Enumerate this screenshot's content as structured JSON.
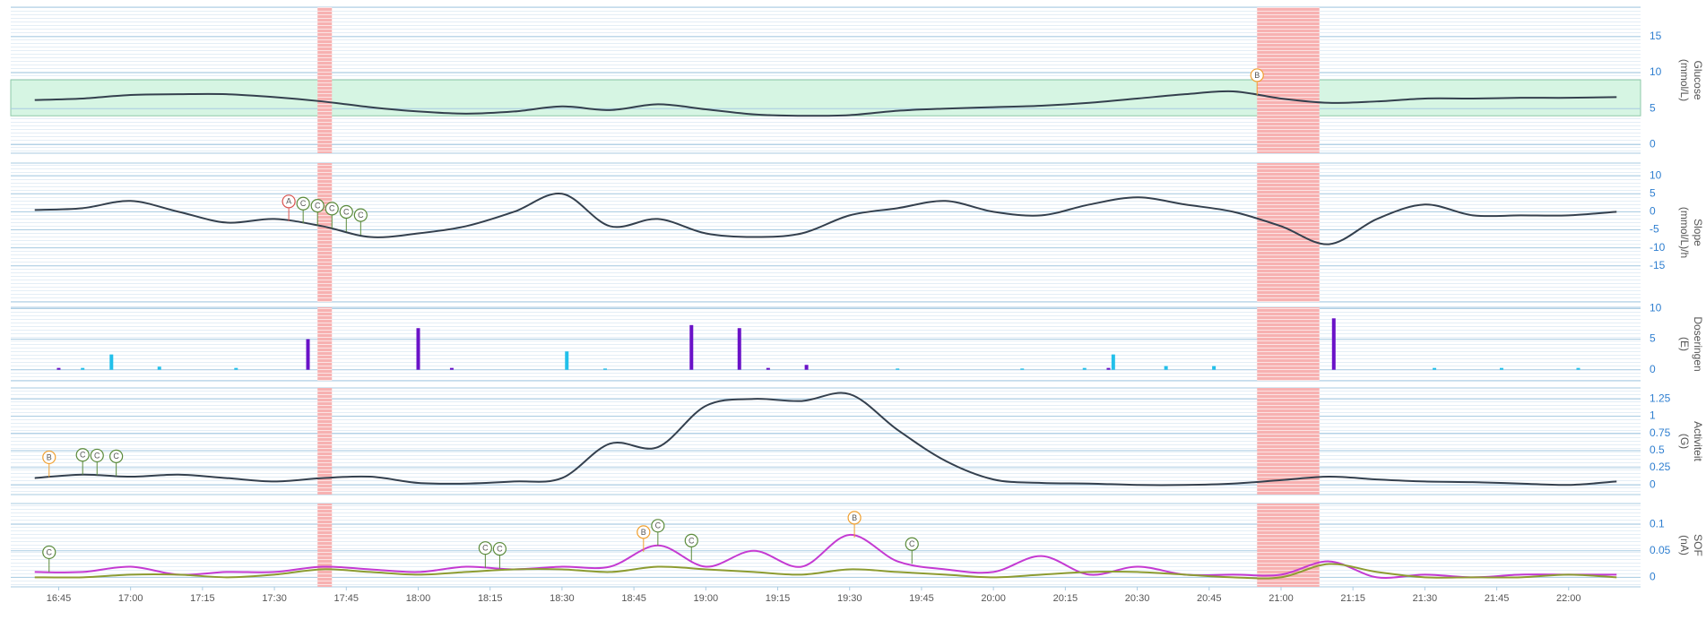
{
  "shaded_periods": [
    [
      "17:39",
      "17:42"
    ],
    [
      "20:55",
      "21:08"
    ]
  ],
  "marker_colors": {
    "A": "#d9534f",
    "B": "#f0a030",
    "C": "#5a8a3a"
  },
  "chart_data": [
    {
      "type": "line",
      "ylabel": [
        "Glucose",
        "(mmol/L)"
      ],
      "ylim": [
        -1.2,
        19.1
      ],
      "yticks": [
        0,
        5,
        10,
        15
      ],
      "xlim": [
        "16:35",
        "22:15"
      ],
      "target_range": [
        4,
        9
      ],
      "target_color": "#d6f5e3",
      "x": [
        "16:40",
        "16:50",
        "17:00",
        "17:10",
        "17:20",
        "17:30",
        "17:40",
        "17:50",
        "18:00",
        "18:10",
        "18:20",
        "18:30",
        "18:40",
        "18:50",
        "19:00",
        "19:10",
        "19:20",
        "19:30",
        "19:40",
        "19:50",
        "20:00",
        "20:10",
        "20:20",
        "20:30",
        "20:40",
        "20:50",
        "21:00",
        "21:10",
        "21:20",
        "21:30",
        "21:40",
        "21:50",
        "22:00",
        "22:10"
      ],
      "series": [
        {
          "color": "#34404e",
          "values": [
            6.2,
            6.4,
            6.9,
            7.0,
            7.0,
            6.6,
            6.0,
            5.2,
            4.6,
            4.3,
            4.6,
            5.3,
            4.8,
            5.6,
            4.9,
            4.2,
            4.0,
            4.1,
            4.7,
            5.0,
            5.2,
            5.4,
            5.8,
            6.4,
            7.0,
            7.4,
            6.4,
            5.8,
            6.0,
            6.4,
            6.4,
            6.5,
            6.5,
            6.6
          ]
        }
      ],
      "markers": [
        {
          "label": "B",
          "x": "20:55"
        }
      ]
    },
    {
      "type": "line",
      "ylabel": [
        "Slope",
        "(mmol/L)/h"
      ],
      "ylim": [
        -25,
        13.5
      ],
      "yticks": [
        -15,
        -10,
        -5,
        0,
        5,
        10
      ],
      "xlim": [
        "16:35",
        "22:15"
      ],
      "x": [
        "16:40",
        "16:50",
        "17:00",
        "17:10",
        "17:20",
        "17:30",
        "17:40",
        "17:50",
        "18:00",
        "18:10",
        "18:20",
        "18:30",
        "18:40",
        "18:50",
        "19:00",
        "19:10",
        "19:20",
        "19:30",
        "19:40",
        "19:50",
        "20:00",
        "20:10",
        "20:20",
        "20:30",
        "20:40",
        "20:50",
        "21:00",
        "21:10",
        "21:20",
        "21:30",
        "21:40",
        "21:50",
        "22:00",
        "22:10"
      ],
      "series": [
        {
          "color": "#34404e",
          "values": [
            0.5,
            1,
            3,
            0,
            -3,
            -2,
            -4,
            -7,
            -6,
            -4,
            0,
            5,
            -4,
            -2,
            -6,
            -7,
            -6,
            -1,
            1,
            3,
            0,
            -1,
            2,
            4,
            2,
            0,
            -4,
            -9,
            -2,
            2,
            -1,
            -1,
            -1,
            0
          ]
        }
      ],
      "markers": [
        {
          "label": "A",
          "x": "17:33"
        },
        {
          "label": "C",
          "x": "17:36"
        },
        {
          "label": "C",
          "x": "17:39"
        },
        {
          "label": "C",
          "x": "17:42"
        },
        {
          "label": "C",
          "x": "17:45"
        },
        {
          "label": "C",
          "x": "17:48"
        }
      ]
    },
    {
      "type": "bar",
      "ylabel": [
        "Doseringen",
        "(E)"
      ],
      "ylim": [
        -1.8,
        10.2
      ],
      "yticks": [
        0,
        5,
        10
      ],
      "xlim": [
        "16:35",
        "22:15"
      ],
      "series": [
        {
          "color": "#6a12c8",
          "x": [
            "16:45",
            "17:37",
            "18:00",
            "18:07",
            "18:57",
            "19:07",
            "19:13",
            "19:21",
            "20:24",
            "21:11"
          ],
          "values": [
            0.3,
            5,
            6.8,
            0.3,
            7.3,
            6.8,
            0.3,
            0.8,
            0.3,
            8.4
          ]
        },
        {
          "color": "#22c0ea",
          "x": [
            "16:50",
            "16:56",
            "17:06",
            "17:22",
            "18:31",
            "18:39",
            "19:40",
            "20:06",
            "20:19",
            "20:25",
            "20:36",
            "20:46",
            "21:32",
            "21:46",
            "22:02"
          ],
          "values": [
            0.3,
            2.5,
            0.5,
            0.3,
            3,
            0.2,
            0.2,
            0.2,
            0.3,
            2.5,
            0.6,
            0.6,
            0.3,
            0.3,
            0.3
          ]
        }
      ]
    },
    {
      "type": "line",
      "ylabel": [
        "Activiteit",
        "(G)"
      ],
      "ylim": [
        -0.14,
        1.41
      ],
      "yticks": [
        0,
        0.25,
        0.5,
        0.75,
        1,
        1.25
      ],
      "xlim": [
        "16:35",
        "22:15"
      ],
      "x": [
        "16:40",
        "16:50",
        "17:00",
        "17:10",
        "17:20",
        "17:30",
        "17:40",
        "17:50",
        "18:00",
        "18:10",
        "18:20",
        "18:30",
        "18:40",
        "18:50",
        "19:00",
        "19:10",
        "19:20",
        "19:30",
        "19:40",
        "19:50",
        "20:00",
        "20:10",
        "20:20",
        "20:30",
        "20:40",
        "20:50",
        "21:00",
        "21:10",
        "21:20",
        "21:30",
        "21:40",
        "21:50",
        "22:00",
        "22:10"
      ],
      "series": [
        {
          "color": "#34404e",
          "values": [
            0.1,
            0.15,
            0.12,
            0.15,
            0.1,
            0.05,
            0.1,
            0.12,
            0.03,
            0.02,
            0.05,
            0.1,
            0.6,
            0.55,
            1.15,
            1.25,
            1.22,
            1.32,
            0.8,
            0.35,
            0.08,
            0.03,
            0.02,
            0,
            0,
            0.02,
            0.07,
            0.12,
            0.08,
            0.05,
            0.04,
            0.02,
            0,
            0.05
          ]
        }
      ],
      "markers": [
        {
          "label": "B",
          "x": "16:43"
        },
        {
          "label": "C",
          "x": "16:50"
        },
        {
          "label": "C",
          "x": "16:53"
        },
        {
          "label": "C",
          "x": "16:57"
        }
      ]
    },
    {
      "type": "line",
      "ylabel": [
        "SOF",
        "(nA)"
      ],
      "ylim": [
        -0.018,
        0.139
      ],
      "yticks": [
        0,
        0.05,
        0.1
      ],
      "xlim": [
        "16:35",
        "22:15"
      ],
      "xticks": [
        "16:45",
        "17:00",
        "17:15",
        "17:30",
        "17:45",
        "18:00",
        "18:15",
        "18:30",
        "18:45",
        "19:00",
        "19:15",
        "19:30",
        "19:45",
        "20:00",
        "20:15",
        "20:30",
        "20:45",
        "21:00",
        "21:15",
        "21:30",
        "21:45",
        "22:00"
      ],
      "x": [
        "16:40",
        "16:50",
        "17:00",
        "17:10",
        "17:20",
        "17:30",
        "17:40",
        "17:50",
        "18:00",
        "18:10",
        "18:20",
        "18:30",
        "18:40",
        "18:50",
        "19:00",
        "19:10",
        "19:20",
        "19:30",
        "19:40",
        "19:50",
        "20:00",
        "20:10",
        "20:20",
        "20:30",
        "20:40",
        "20:50",
        "21:00",
        "21:10",
        "21:20",
        "21:30",
        "21:40",
        "21:50",
        "22:00",
        "22:10"
      ],
      "series": [
        {
          "color": "#c43ad2",
          "values": [
            0.01,
            0.01,
            0.02,
            0.005,
            0.01,
            0.01,
            0.02,
            0.015,
            0.01,
            0.02,
            0.015,
            0.02,
            0.02,
            0.06,
            0.02,
            0.05,
            0.02,
            0.08,
            0.03,
            0.015,
            0.01,
            0.04,
            0.005,
            0.02,
            0.005,
            0.005,
            0.005,
            0.03,
            0,
            0.005,
            0,
            0.005,
            0.005,
            0.005
          ]
        },
        {
          "color": "#8d9c32",
          "values": [
            0,
            0,
            0.005,
            0.005,
            0,
            0.005,
            0.015,
            0.01,
            0.005,
            0.01,
            0.015,
            0.015,
            0.01,
            0.02,
            0.015,
            0.01,
            0.005,
            0.015,
            0.01,
            0.005,
            0,
            0.005,
            0.01,
            0.01,
            0.005,
            0,
            0,
            0.025,
            0.01,
            0,
            0,
            0,
            0.005,
            0
          ]
        }
      ],
      "markers": [
        {
          "label": "C",
          "x": "16:43"
        },
        {
          "label": "C",
          "x": "18:14"
        },
        {
          "label": "C",
          "x": "18:17"
        },
        {
          "label": "B",
          "x": "18:47"
        },
        {
          "label": "C",
          "x": "18:50"
        },
        {
          "label": "C",
          "x": "18:57"
        },
        {
          "label": "B",
          "x": "19:31"
        },
        {
          "label": "C",
          "x": "19:43"
        }
      ]
    }
  ]
}
